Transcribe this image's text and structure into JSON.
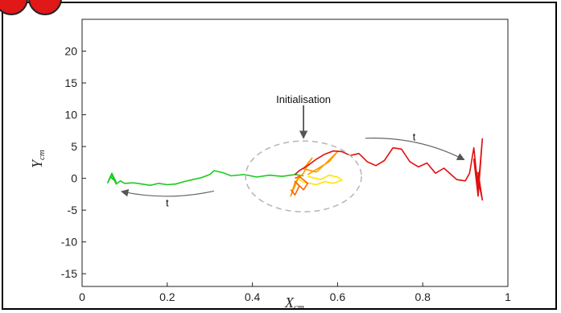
{
  "chart_data": {
    "type": "line",
    "xlabel": "X",
    "xlabel_sub": "cm",
    "ylabel": "Y",
    "ylabel_sub": "cm",
    "xlim": [
      0,
      1
    ],
    "ylim": [
      -17,
      25
    ],
    "xticks": [
      0,
      0.2,
      0.4,
      0.6,
      0.8,
      1
    ],
    "yticks": [
      -15,
      -10,
      -5,
      0,
      5,
      10,
      15,
      20
    ],
    "grid": false,
    "legend": "none",
    "series": [
      {
        "color": "#1ecb1e",
        "x": [
          0.52,
          0.5,
          0.47,
          0.44,
          0.41,
          0.38,
          0.35,
          0.33,
          0.31,
          0.3,
          0.28,
          0.26,
          0.24,
          0.22,
          0.2,
          0.18,
          0.16,
          0.14,
          0.12,
          0.1,
          0.09,
          0.08,
          0.07,
          0.06,
          0.07,
          0.08,
          0.065
        ],
        "y": [
          0.4,
          0.6,
          0.3,
          0.5,
          0.2,
          0.6,
          0.4,
          0.9,
          1.2,
          0.6,
          0.1,
          -0.2,
          -0.5,
          -0.9,
          -1.0,
          -0.8,
          -1.1,
          -0.9,
          -0.7,
          -0.8,
          -0.4,
          -0.9,
          0.5,
          -0.7,
          0.8,
          -0.6,
          0.3
        ]
      },
      {
        "color": "#ffe400",
        "x": [
          0.5,
          0.52,
          0.55,
          0.57,
          0.59,
          0.61,
          0.6,
          0.58,
          0.56,
          0.53
        ],
        "y": [
          0.2,
          -0.6,
          -1.0,
          -0.5,
          -0.8,
          -0.3,
          0.2,
          0.5,
          -0.2,
          0.3
        ]
      },
      {
        "color": "#ff9a00",
        "x": [
          0.51,
          0.5,
          0.49,
          0.5,
          0.52,
          0.53,
          0.54,
          0.52,
          0.55,
          0.57,
          0.6,
          0.58,
          0.55,
          0.53
        ],
        "y": [
          0.5,
          -1.2,
          -2.8,
          -0.6,
          0.8,
          2.2,
          3.2,
          1.5,
          1.0,
          2.2,
          4.2,
          2.6,
          1.4,
          0.6
        ]
      },
      {
        "color": "#ff6000",
        "x": [
          0.49,
          0.5,
          0.51,
          0.5,
          0.52,
          0.53,
          0.51,
          0.5
        ],
        "y": [
          -1.8,
          -2.6,
          -1.2,
          -0.5,
          -1.8,
          -0.8,
          0.3,
          0.0
        ]
      },
      {
        "color": "#e01010",
        "x": [
          0.5,
          0.51,
          0.53,
          0.55,
          0.57,
          0.59,
          0.61,
          0.63,
          0.65,
          0.67,
          0.69,
          0.71,
          0.73,
          0.75,
          0.77,
          0.79,
          0.81,
          0.83,
          0.85,
          0.87,
          0.88,
          0.9,
          0.91,
          0.92,
          0.93,
          0.94,
          0.93,
          0.92,
          0.94,
          0.93
        ],
        "y": [
          0.6,
          1.2,
          2.0,
          3.0,
          3.8,
          4.3,
          4.2,
          3.6,
          3.9,
          2.6,
          2.0,
          2.8,
          4.8,
          4.6,
          2.6,
          1.8,
          2.4,
          0.8,
          1.6,
          0.4,
          -0.2,
          -0.4,
          0.8,
          4.8,
          -1.6,
          6.2,
          -2.8,
          3.0,
          -3.4,
          1.0
        ]
      }
    ],
    "annotations": [
      {
        "text": "Initialisation",
        "x": 0.52,
        "y": 12.5
      },
      {
        "text": "t",
        "x": 0.2,
        "y": -3.8
      },
      {
        "text": "t",
        "x": 0.78,
        "y": 6.6
      }
    ]
  }
}
